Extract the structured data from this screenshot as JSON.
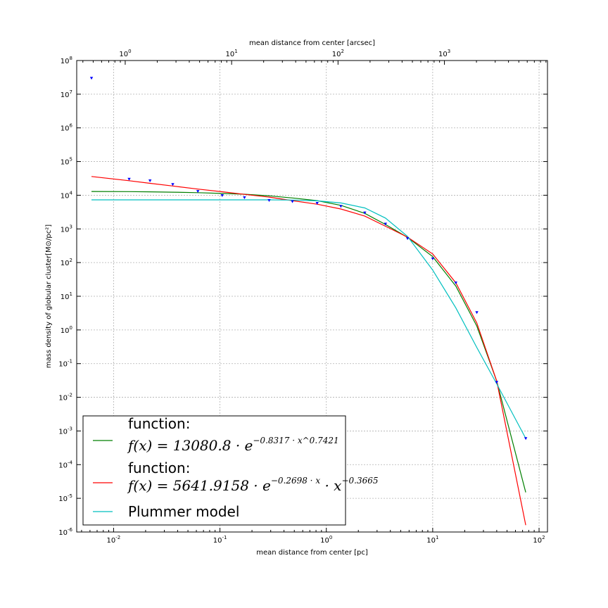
{
  "chart_data": {
    "type": "line",
    "xlabel": "mean distance from center [pc]",
    "x2label": "mean distance from center [arcsec]",
    "ylabel": "mass density of globular cluster[M⊙/pc²]",
    "xscale": "log",
    "yscale": "log",
    "xlim": [
      0.0045,
      120
    ],
    "ylim": [
      1e-06,
      100000000.0
    ],
    "x2lim": [
      0.35,
      9300
    ],
    "grid": true,
    "legend_position": "lower-left",
    "x_ticks": [
      {
        "value": 0.01,
        "base": "10",
        "exp": "-2"
      },
      {
        "value": 0.1,
        "base": "10",
        "exp": "-1"
      },
      {
        "value": 1,
        "base": "10",
        "exp": "0"
      },
      {
        "value": 10,
        "base": "10",
        "exp": "1"
      },
      {
        "value": 100,
        "base": "10",
        "exp": "2"
      }
    ],
    "x2_ticks": [
      {
        "value": 1,
        "base": "10",
        "exp": "0"
      },
      {
        "value": 10,
        "base": "10",
        "exp": "1"
      },
      {
        "value": 100,
        "base": "10",
        "exp": "2"
      },
      {
        "value": 1000,
        "base": "10",
        "exp": "3"
      }
    ],
    "y_ticks": [
      {
        "value": 1e-06,
        "base": "10",
        "exp": "-6"
      },
      {
        "value": 1e-05,
        "base": "10",
        "exp": "-5"
      },
      {
        "value": 0.0001,
        "base": "10",
        "exp": "-4"
      },
      {
        "value": 0.001,
        "base": "10",
        "exp": "-3"
      },
      {
        "value": 0.01,
        "base": "10",
        "exp": "-2"
      },
      {
        "value": 0.1,
        "base": "10",
        "exp": "-1"
      },
      {
        "value": 1,
        "base": "10",
        "exp": "0"
      },
      {
        "value": 10,
        "base": "10",
        "exp": "1"
      },
      {
        "value": 100,
        "base": "10",
        "exp": "2"
      },
      {
        "value": 1000,
        "base": "10",
        "exp": "3"
      },
      {
        "value": 10000,
        "base": "10",
        "exp": "4"
      },
      {
        "value": 100000,
        "base": "10",
        "exp": "5"
      },
      {
        "value": 1000000,
        "base": "10",
        "exp": "6"
      },
      {
        "value": 10000000,
        "base": "10",
        "exp": "7"
      },
      {
        "value": 100000000,
        "base": "10",
        "exp": "8"
      }
    ],
    "data_points": {
      "color": "#0000ff",
      "x": [
        0.0062,
        0.014,
        0.022,
        0.036,
        0.062,
        0.105,
        0.17,
        0.29,
        0.48,
        0.82,
        1.37,
        2.3,
        3.6,
        5.8,
        10,
        16.5,
        26,
        40,
        75
      ],
      "y": [
        30000000,
        30000,
        27000,
        21000,
        13000,
        9800,
        8500,
        7000,
        6500,
        5800,
        4700,
        3000,
        1400,
        520,
        130,
        25,
        3.3,
        0.028,
        0.0006
      ]
    },
    "series": [
      {
        "name_line1": "function:",
        "name_formula": "f(x) = 13080.8 · e",
        "name_exponent": "−0.8317 · x^0.7421",
        "color": "#007f00",
        "x": [
          0.0062,
          0.014,
          0.022,
          0.036,
          0.062,
          0.105,
          0.17,
          0.29,
          0.48,
          0.82,
          1.37,
          2.3,
          3.6,
          5.8,
          10,
          16.5,
          26,
          40,
          75
        ],
        "y": [
          12900,
          12800,
          12600,
          12300,
          11900,
          11300,
          10700,
          9600,
          8300,
          6900,
          5000,
          2900,
          1350,
          560,
          150,
          20,
          1.3,
          0.03,
          1.5e-05
        ]
      },
      {
        "name_line1": "function:",
        "name_formula": "f(x) = 5641.9158 · e",
        "name_exponent": "−0.2698 · x",
        "name_tail": " · x",
        "name_tail_exponent": "−0.3665",
        "color": "#ff0000",
        "x": [
          0.0062,
          0.014,
          0.022,
          0.036,
          0.062,
          0.105,
          0.17,
          0.29,
          0.48,
          0.82,
          1.37,
          2.3,
          3.6,
          5.8,
          10,
          16.5,
          26,
          40,
          75
        ],
        "y": [
          36000,
          27000,
          22600,
          18800,
          15200,
          12700,
          10600,
          8800,
          6900,
          5400,
          3900,
          2400,
          1200,
          570,
          180,
          25,
          1.6,
          0.03,
          1.6e-06
        ]
      },
      {
        "name": "Plummer model",
        "color": "#00bfbf",
        "x": [
          0.0062,
          0.014,
          0.022,
          0.036,
          0.062,
          0.105,
          0.17,
          0.29,
          0.48,
          0.82,
          1.37,
          2.3,
          3.6,
          5.8,
          10,
          16.5,
          26,
          40,
          75
        ],
        "y": [
          7300,
          7300,
          7300,
          7300,
          7300,
          7300,
          7300,
          7300,
          7200,
          6800,
          5900,
          4200,
          2100,
          600,
          60,
          4.5,
          0.3,
          0.025,
          0.0006
        ]
      }
    ]
  }
}
